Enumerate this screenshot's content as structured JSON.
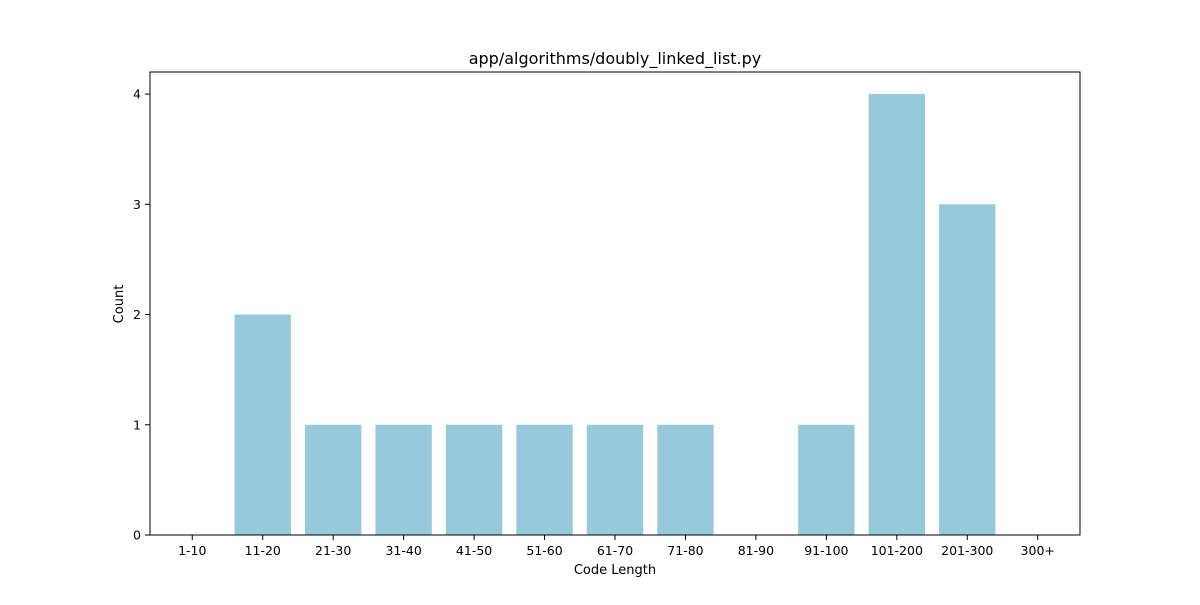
{
  "chart_data": {
    "type": "bar",
    "title": "app/algorithms/doubly_linked_list.py",
    "xlabel": "Code Length",
    "ylabel": "Count",
    "categories": [
      "1-10",
      "11-20",
      "21-30",
      "31-40",
      "41-50",
      "51-60",
      "61-70",
      "71-80",
      "81-90",
      "91-100",
      "101-200",
      "201-300",
      "300+"
    ],
    "values": [
      0,
      2,
      1,
      1,
      1,
      1,
      1,
      1,
      0,
      1,
      4,
      3,
      0
    ],
    "yticks": [
      0,
      1,
      2,
      3,
      4
    ],
    "ylim": [
      0,
      4.2
    ],
    "grid": false,
    "bar_color": "#96c9dc"
  }
}
